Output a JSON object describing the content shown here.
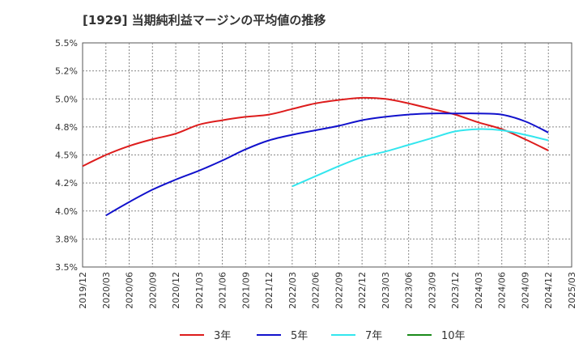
{
  "chart_data": {
    "type": "line",
    "title": "[1929]  当期純利益マージンの平均値の推移",
    "y_tick_labels": [
      "5.5%",
      "5.2%",
      "5.0%",
      "4.8%",
      "4.5%",
      "4.2%",
      "4.0%",
      "3.8%",
      "3.5%"
    ],
    "ylim": [
      3.5,
      5.5
    ],
    "y_unit": "%",
    "x_tick_labels": [
      "2019/12",
      "2020/03",
      "2020/06",
      "2020/09",
      "2020/12",
      "2021/03",
      "2021/06",
      "2021/09",
      "2021/12",
      "2022/03",
      "2022/06",
      "2022/09",
      "2022/12",
      "2023/03",
      "2023/06",
      "2023/09",
      "2023/12",
      "2024/03",
      "2024/06",
      "2024/09",
      "2024/12",
      "2025/03"
    ],
    "grid": true,
    "legend_position": "bottom",
    "series": [
      {
        "name": "3年",
        "color": "#dd1c1c",
        "x": [
          "2019/12",
          "2020/03",
          "2020/06",
          "2020/09",
          "2020/12",
          "2021/03",
          "2021/06",
          "2021/09",
          "2021/12",
          "2022/03",
          "2022/06",
          "2022/09",
          "2022/12",
          "2023/03",
          "2023/06",
          "2023/09",
          "2023/12",
          "2024/03",
          "2024/06",
          "2024/09",
          "2024/12"
        ],
        "values": [
          4.4,
          4.5,
          4.58,
          4.64,
          4.69,
          4.77,
          4.81,
          4.84,
          4.86,
          4.91,
          4.96,
          4.99,
          5.01,
          5.0,
          4.96,
          4.91,
          4.86,
          4.79,
          4.73,
          4.64,
          4.54
        ]
      },
      {
        "name": "5年",
        "color": "#1111cc",
        "x": [
          "2020/03",
          "2020/06",
          "2020/09",
          "2020/12",
          "2021/03",
          "2021/06",
          "2021/09",
          "2021/12",
          "2022/03",
          "2022/06",
          "2022/09",
          "2022/12",
          "2023/03",
          "2023/06",
          "2023/09",
          "2023/12",
          "2024/03",
          "2024/06",
          "2024/09",
          "2024/12"
        ],
        "values": [
          3.96,
          4.08,
          4.19,
          4.28,
          4.36,
          4.45,
          4.55,
          4.63,
          4.68,
          4.72,
          4.76,
          4.81,
          4.84,
          4.86,
          4.87,
          4.87,
          4.87,
          4.86,
          4.8,
          4.7
        ]
      },
      {
        "name": "7年",
        "color": "#33e6ee",
        "x": [
          "2022/03",
          "2022/06",
          "2022/09",
          "2022/12",
          "2023/03",
          "2023/06",
          "2023/09",
          "2023/12",
          "2024/03",
          "2024/06",
          "2024/09",
          "2024/12"
        ],
        "values": [
          4.22,
          4.31,
          4.4,
          4.48,
          4.53,
          4.59,
          4.65,
          4.71,
          4.73,
          4.72,
          4.68,
          4.63
        ]
      },
      {
        "name": "10年",
        "color": "#1a8a1a",
        "x": [],
        "values": []
      }
    ]
  }
}
